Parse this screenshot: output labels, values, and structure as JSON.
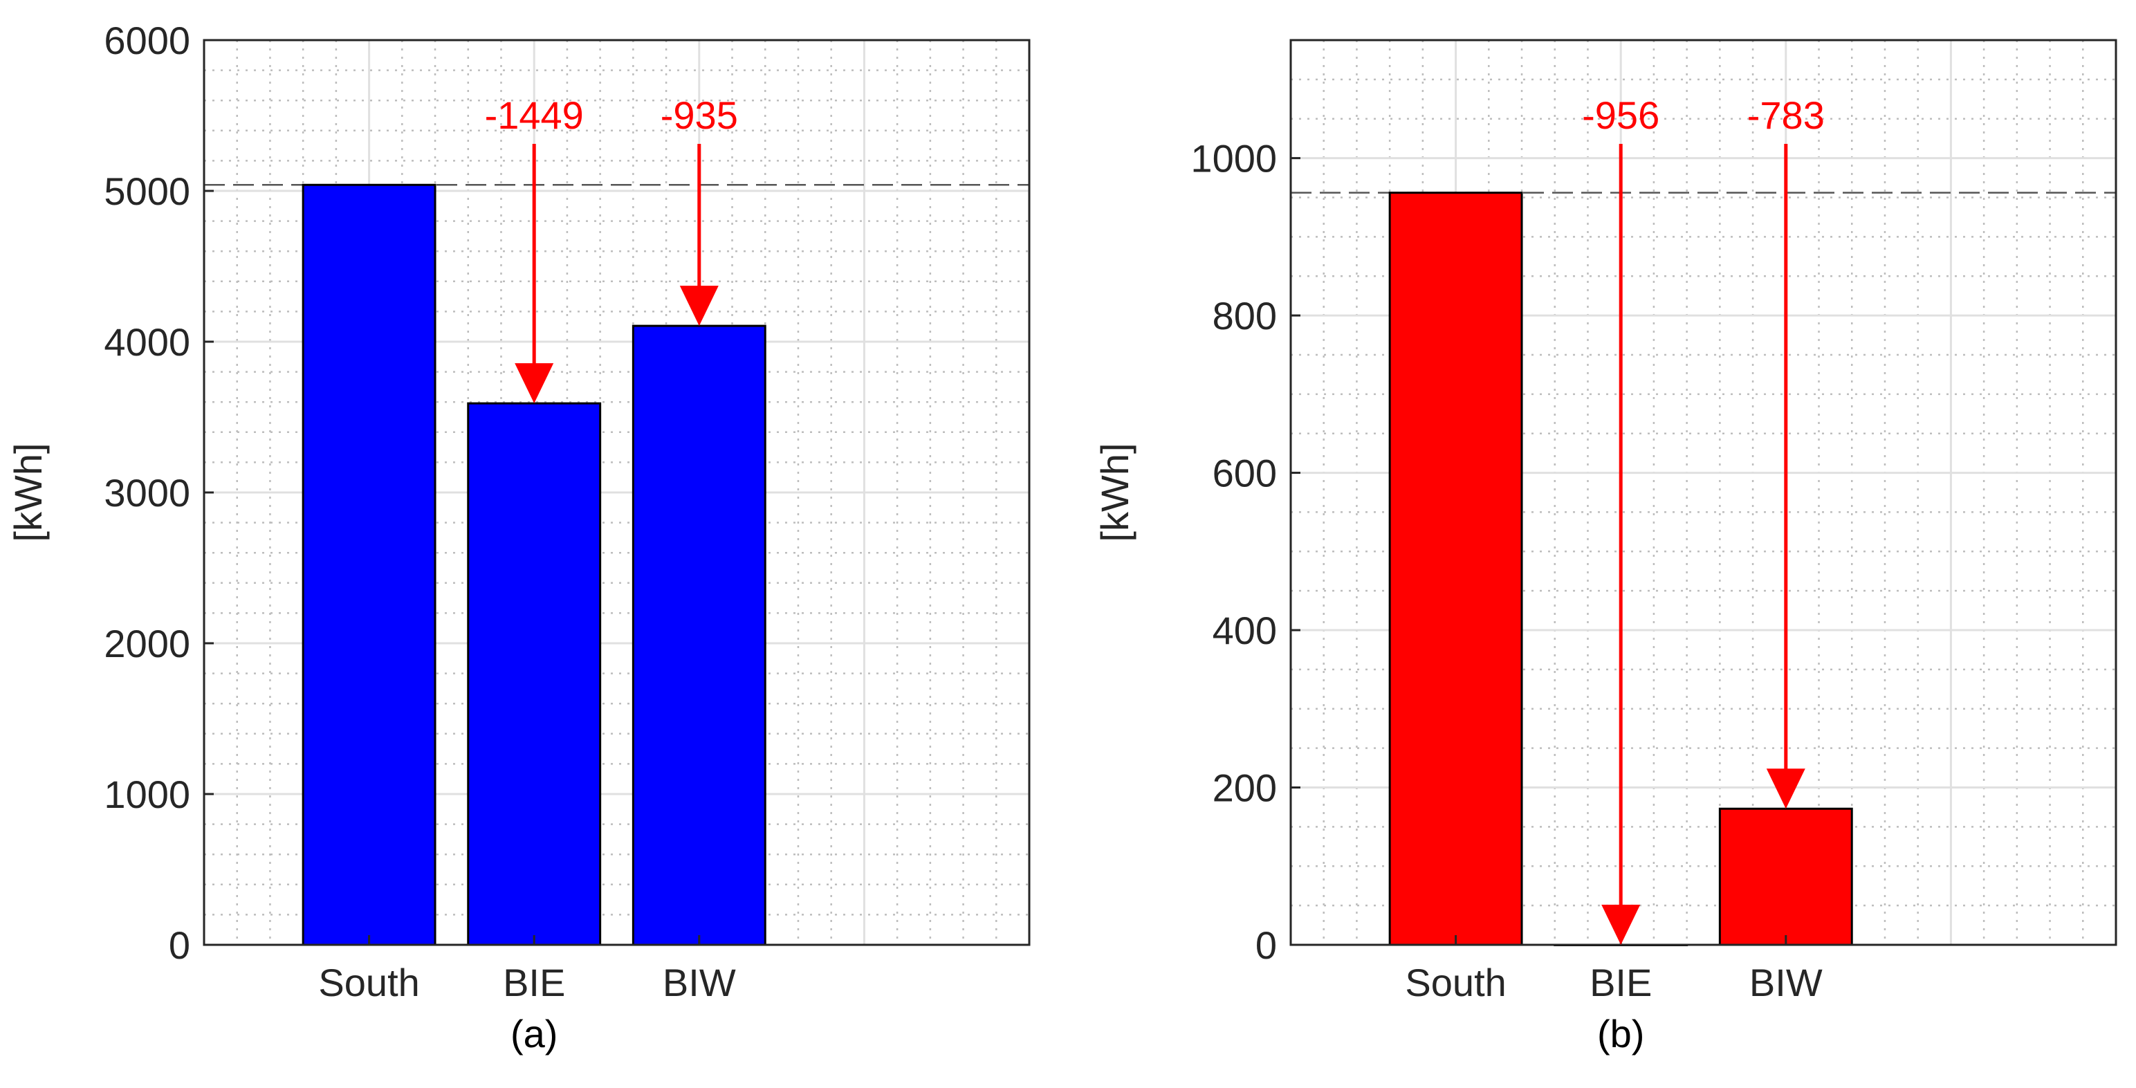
{
  "chart_data": [
    {
      "type": "bar",
      "panel_label": "(a)",
      "categories": [
        "South",
        "BIE",
        "BIW"
      ],
      "values": [
        5040,
        3591,
        4105
      ],
      "ylabel": "[kWh]",
      "ylim": [
        0,
        6000
      ],
      "yticks": [
        0,
        1000,
        2000,
        3000,
        4000,
        5000,
        6000
      ],
      "bar_color": "#0000ff",
      "grid": true,
      "reference_line": 5040,
      "annotations": [
        {
          "category": "BIE",
          "text": "-1449",
          "value": -1449,
          "color": "#ff0000"
        },
        {
          "category": "BIW",
          "text": "-935",
          "value": -935,
          "color": "#ff0000"
        }
      ]
    },
    {
      "type": "bar",
      "panel_label": "(b)",
      "categories": [
        "South",
        "BIE",
        "BIW"
      ],
      "values": [
        956,
        0,
        173
      ],
      "ylabel": "[kWh]",
      "ylim": [
        0,
        1150
      ],
      "yticks": [
        0,
        200,
        400,
        600,
        800,
        1000
      ],
      "bar_color": "#ff0000",
      "grid": true,
      "reference_line": 956,
      "annotations": [
        {
          "category": "BIE",
          "text": "-956",
          "value": -956,
          "color": "#ff0000"
        },
        {
          "category": "BIW",
          "text": "-783",
          "value": -783,
          "color": "#ff0000"
        }
      ]
    }
  ]
}
